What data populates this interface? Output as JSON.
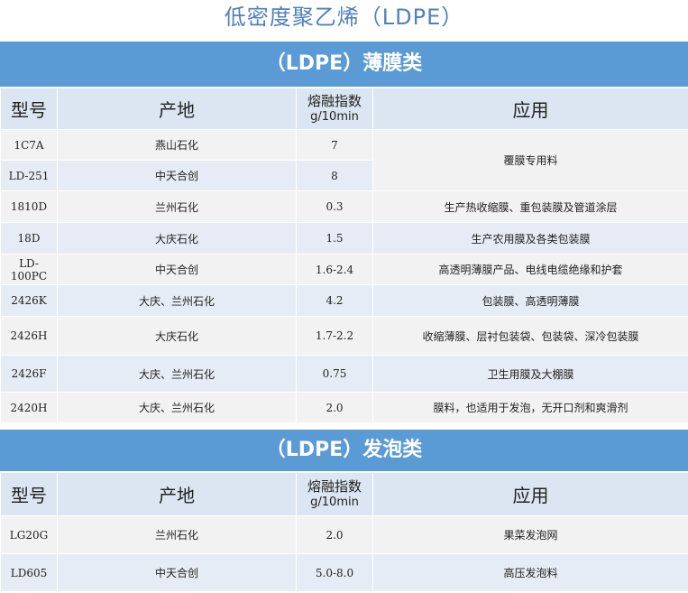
{
  "title": "低密度聚乙烯（LDPE）",
  "sections": [
    {
      "band": "（LDPE）薄膜类",
      "headers": {
        "model": "型号",
        "origin": "产地",
        "mfi_line1": "熔融指数",
        "mfi_line2": "g/10min",
        "application": "应用"
      },
      "rows": [
        {
          "model": "1C7A",
          "origin": "燕山石化",
          "mfi": "7",
          "application": "覆膜专用料"
        },
        {
          "model": "LD-251",
          "origin": "中天合创",
          "mfi": "8",
          "application": ""
        },
        {
          "model": "1810D",
          "origin": "兰州石化",
          "mfi": "0.3",
          "application": "生产热收缩膜、重包装膜及管道涂层"
        },
        {
          "model": "18D",
          "origin": "大庆石化",
          "mfi": "1.5",
          "application": "生产农用膜及各类包装膜"
        },
        {
          "model": "LD-100PC",
          "origin": "中天合创",
          "mfi": "1.6-2.4",
          "application": "高透明薄膜产品、电线电缆绝缘和护套"
        },
        {
          "model": "2426K",
          "origin": "大庆、兰州石化",
          "mfi": "4.2",
          "application": "包装膜、高透明薄膜"
        },
        {
          "model": "2426H",
          "origin": "大庆石化",
          "mfi": "1.7-2.2",
          "application": "收缩薄膜、层衬包装袋、包装袋、深冷包装膜"
        },
        {
          "model": "2426F",
          "origin": "大庆、兰州石化",
          "mfi": "0.75",
          "application": "卫生用膜及大棚膜"
        },
        {
          "model": "2420H",
          "origin": "大庆、兰州石化",
          "mfi": "2.0",
          "application": "膜料，也适用于发泡，无开口剂和爽滑剂"
        }
      ]
    },
    {
      "band": "（LDPE）发泡类",
      "headers": {
        "model": "型号",
        "origin": "产地",
        "mfi_line1": "熔融指数",
        "mfi_line2": "g/10min",
        "application": "应用"
      },
      "rows": [
        {
          "model": "LG20G",
          "origin": "兰州石化",
          "mfi": "2.0",
          "application": "果菜发泡网"
        },
        {
          "model": "LD605",
          "origin": "中天合创",
          "mfi": "5.0-8.0",
          "application": "高压发泡料"
        }
      ]
    }
  ],
  "colors": {
    "band": "#5b9bd5",
    "title": "#4f81bd",
    "highlight_model": "#d9251c"
  }
}
